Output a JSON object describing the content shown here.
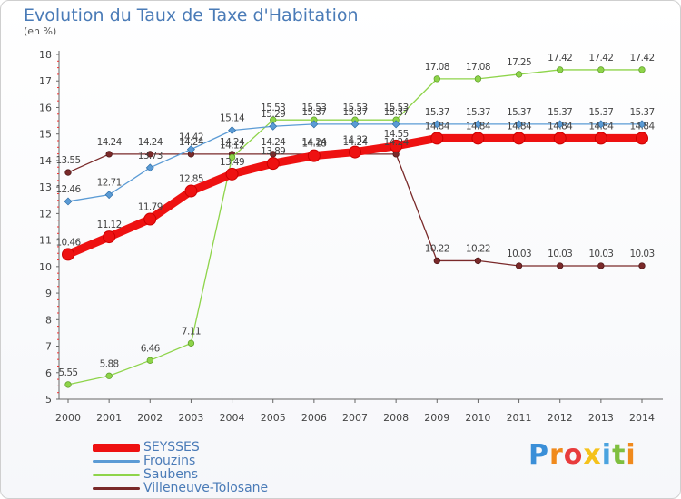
{
  "header": {
    "title": "Evolution du Taux de Taxe d'Habitation",
    "subtitle": "(en %)"
  },
  "logo": {
    "text": "Proxiti",
    "colors": [
      "#3a8fd8",
      "#f08a1c",
      "#e83c3c",
      "#f5c21b",
      "#4aa3df",
      "#7fbf3f",
      "#f08a1c"
    ]
  },
  "chart_data": {
    "type": "line",
    "categories": [
      "2000",
      "2001",
      "2002",
      "2003",
      "2004",
      "2005",
      "2006",
      "2007",
      "2008",
      "2009",
      "2010",
      "2011",
      "2012",
      "2013",
      "2014"
    ],
    "ylim": [
      5,
      18
    ],
    "yticks": [
      5,
      6,
      7,
      8,
      9,
      10,
      11,
      12,
      13,
      14,
      15,
      16,
      17,
      18
    ],
    "grid": false,
    "legend_position": "bottom-left",
    "series": [
      {
        "name": "SEYSSES",
        "color": "#ee1111",
        "values": [
          10.46,
          11.12,
          11.79,
          12.85,
          13.49,
          13.89,
          14.18,
          14.32,
          14.55,
          14.84,
          14.84,
          14.84,
          14.84,
          14.84,
          14.84
        ],
        "labels": [
          "10.46",
          "11.12",
          "11.79",
          "12.85",
          "13.49",
          "13.89",
          "14.18",
          "14.32",
          "14.55",
          "14.84",
          "14.84",
          "14.84",
          "14.84",
          "14.84",
          "14.84"
        ]
      },
      {
        "name": "Frouzins",
        "color": "#5b9bd5",
        "values": [
          12.46,
          12.71,
          13.73,
          14.42,
          15.14,
          15.29,
          15.37,
          15.37,
          15.37,
          15.37,
          15.37,
          15.37,
          15.37,
          15.37,
          15.37
        ],
        "labels": [
          "12.46",
          "12.71",
          "13.73",
          "14.42",
          "15.14",
          "15.29",
          "15.37",
          "15.37",
          "15.37",
          "15.37",
          "15.37",
          "15.37",
          "15.37",
          "15.37",
          "15.37"
        ]
      },
      {
        "name": "Saubens",
        "color": "#8ed44a",
        "values": [
          5.55,
          5.88,
          6.46,
          7.11,
          14.12,
          15.53,
          15.53,
          15.53,
          15.53,
          17.08,
          17.08,
          17.25,
          17.42,
          17.42,
          17.42
        ],
        "labels": [
          "5.55",
          "5.88",
          "6.46",
          "7.11",
          "14.12",
          "15.53",
          "15.53",
          "15.53",
          "15.53",
          "17.08",
          "17.08",
          "17.25",
          "17.42",
          "17.42",
          "17.42"
        ]
      },
      {
        "name": "Villeneuve-Tolosane",
        "color": "#7a2a2a",
        "values": [
          13.55,
          14.24,
          14.24,
          14.24,
          14.24,
          14.24,
          14.24,
          14.24,
          14.24,
          10.22,
          10.22,
          10.03,
          10.03,
          10.03,
          10.03
        ],
        "labels": [
          "13.55",
          "14.24",
          "14.24",
          "14.24",
          "14.24",
          "14.24",
          "14.24",
          "14.24",
          "14.24",
          "10.22",
          "10.22",
          "10.03",
          "10.03",
          "10.03",
          "10.03"
        ]
      }
    ]
  }
}
